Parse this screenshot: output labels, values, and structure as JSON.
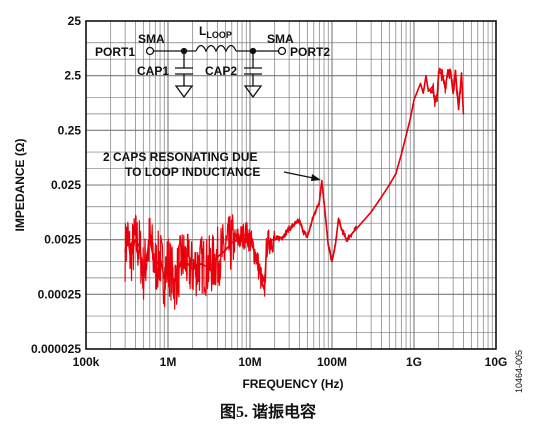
{
  "chart_data": {
    "type": "line",
    "xscale": "log",
    "yscale": "log",
    "xlim": [
      100000,
      10000000000
    ],
    "ylim": [
      2.5e-05,
      25
    ],
    "xlabel": "FREQUENCY (Hz)",
    "ylabel": "IMPEDANCE (Ω)",
    "x_tick_labels": [
      "100k",
      "1M",
      "10M",
      "100M",
      "1G",
      "10G"
    ],
    "y_tick_labels": [
      "0.000025",
      "0.00025",
      "0.0025",
      "0.025",
      "0.25",
      "2.5",
      "25"
    ],
    "grid": true,
    "series": [
      {
        "color": "#e8000b",
        "x": [
          300000,
          320000,
          350000,
          400000,
          450000,
          500000,
          600000,
          700000,
          800000,
          900000,
          1000000,
          1200000,
          1500000,
          2000000,
          2500000,
          3000000,
          3500000,
          4000000,
          5000000,
          6000000,
          7000000,
          8000000,
          9000000,
          10000000,
          12000000,
          14000000,
          15000000,
          16000000,
          18000000,
          20000000,
          25000000,
          30000000,
          40000000,
          45000000,
          50000000,
          60000000,
          70000000,
          75000000,
          80000000,
          90000000,
          100000000,
          110000000,
          120000000,
          130000000,
          150000000,
          200000000,
          300000000,
          400000000,
          500000000,
          600000000,
          700000000,
          800000000,
          900000000,
          1000000000,
          1200000000,
          1300000000,
          1400000000,
          1500000000,
          1700000000,
          1800000000,
          1900000000,
          2000000000,
          2200000000,
          2400000000,
          2600000000,
          2800000000,
          3000000000,
          3200000000,
          3500000000,
          3800000000,
          4000000000
        ],
        "y": [
          0.0015,
          0.003,
          0.0012,
          0.0025,
          0.0018,
          0.0006,
          0.0025,
          0.0008,
          0.0012,
          0.0005,
          0.001,
          0.0004,
          0.0012,
          0.0007,
          0.0009,
          0.0008,
          0.0009,
          0.0012,
          0.0016,
          0.0022,
          0.0025,
          0.0028,
          0.0032,
          0.0025,
          0.0012,
          0.0004,
          0.0003,
          0.002,
          0.0025,
          0.0025,
          0.0028,
          0.004,
          0.0055,
          0.0035,
          0.0028,
          0.007,
          0.012,
          0.03,
          0.012,
          0.002,
          0.001,
          0.002,
          0.006,
          0.004,
          0.0025,
          0.004,
          0.008,
          0.015,
          0.025,
          0.04,
          0.09,
          0.2,
          0.4,
          0.9,
          1.8,
          1.2,
          2.5,
          1.3,
          1.6,
          0.8,
          0.9,
          3,
          2.6,
          1.5,
          3.2,
          2.7,
          1.2,
          3.1,
          0.6,
          2.8,
          0.5
        ]
      }
    ]
  },
  "annotation": {
    "line1": "2 CAPS RESONATING DUE",
    "line2": "TO LOOP INDUCTANCE"
  },
  "schematic": {
    "sma_left": "SMA",
    "sma_right": "SMA",
    "port1": "PORT1",
    "port2": "PORT2",
    "l_main": "L",
    "l_sub": "LOOP",
    "cap1": "CAP1",
    "cap2": "CAP2"
  },
  "figure_id": "10464-005",
  "caption": "图5. 谐振电容"
}
